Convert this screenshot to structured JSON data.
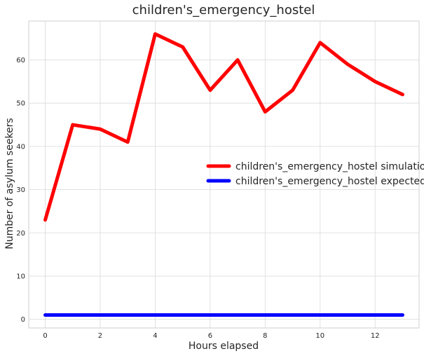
{
  "chart_data": {
    "type": "line",
    "title": "children's_emergency_hostel",
    "xlabel": "Hours elapsed",
    "ylabel": "Number of asylum seekers",
    "xlim": [
      -0.6,
      13.6
    ],
    "ylim": [
      -2,
      69
    ],
    "xticks": [
      0,
      2,
      4,
      6,
      8,
      10,
      12
    ],
    "yticks": [
      0,
      10,
      20,
      30,
      40,
      50,
      60
    ],
    "grid": true,
    "legend_position": "center-right",
    "x": [
      0,
      1,
      2,
      3,
      4,
      5,
      6,
      7,
      8,
      9,
      10,
      11,
      12,
      13
    ],
    "series": [
      {
        "name": "children's_emergency_hostel simulation",
        "color": "#ff0000",
        "values": [
          23,
          45,
          44,
          41,
          66,
          63,
          53,
          60,
          48,
          53,
          64,
          59,
          55,
          52
        ]
      },
      {
        "name": "children's_emergency_hostel expected",
        "color": "#0000ff",
        "values": [
          1,
          1,
          1,
          1,
          1,
          1,
          1,
          1,
          1,
          1,
          1,
          1,
          1,
          1
        ]
      }
    ]
  }
}
